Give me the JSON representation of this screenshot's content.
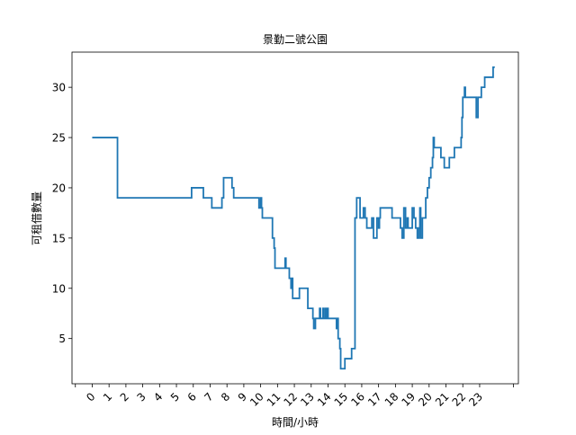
{
  "chart_data": {
    "type": "line",
    "title": "景勤二號公園",
    "xlabel": "時間/小時",
    "ylabel": "可租借數量",
    "xlim": [
      -1.2,
      25.3
    ],
    "ylim": [
      0.5,
      33.5
    ],
    "x_ticks": [
      0,
      1,
      2,
      3,
      4,
      5,
      6,
      7,
      8,
      9,
      10,
      11,
      12,
      13,
      14,
      15,
      16,
      17,
      18,
      19,
      20,
      21,
      22,
      23
    ],
    "x_tick_labels": [
      "0",
      "1",
      "2",
      "3",
      "4",
      "5",
      "6",
      "7",
      "8",
      "9",
      "10",
      "11",
      "12",
      "13",
      "14",
      "15",
      "16",
      "17",
      "18",
      "19",
      "20",
      "21",
      "22",
      "23"
    ],
    "y_ticks": [
      5,
      10,
      15,
      20,
      25,
      30
    ],
    "y_tick_labels": [
      "5",
      "10",
      "15",
      "20",
      "25",
      "30"
    ],
    "color": "#1f77b4",
    "grid": false,
    "series": [
      {
        "name": "",
        "points": [
          [
            0,
            25
          ],
          [
            1.5,
            25
          ],
          [
            1.5,
            19
          ],
          [
            5.9,
            19
          ],
          [
            5.9,
            20
          ],
          [
            6.6,
            20
          ],
          [
            6.6,
            19
          ],
          [
            7.1,
            19
          ],
          [
            7.1,
            18
          ],
          [
            7.7,
            18
          ],
          [
            7.7,
            19
          ],
          [
            7.8,
            19
          ],
          [
            7.8,
            21
          ],
          [
            8.3,
            21
          ],
          [
            8.3,
            20
          ],
          [
            8.4,
            20
          ],
          [
            8.4,
            19
          ],
          [
            9.9,
            19
          ],
          [
            9.9,
            18
          ],
          [
            10.0,
            18
          ],
          [
            10.0,
            19
          ],
          [
            10.05,
            19
          ],
          [
            10.05,
            18
          ],
          [
            10.1,
            18
          ],
          [
            10.1,
            17
          ],
          [
            10.7,
            17
          ],
          [
            10.7,
            15
          ],
          [
            10.8,
            15
          ],
          [
            10.8,
            14
          ],
          [
            10.85,
            14
          ],
          [
            10.85,
            12
          ],
          [
            11.45,
            12
          ],
          [
            11.45,
            13
          ],
          [
            11.5,
            13
          ],
          [
            11.5,
            12
          ],
          [
            11.7,
            12
          ],
          [
            11.7,
            11
          ],
          [
            11.8,
            11
          ],
          [
            11.8,
            10
          ],
          [
            11.85,
            10
          ],
          [
            11.85,
            11
          ],
          [
            11.9,
            11
          ],
          [
            11.9,
            9
          ],
          [
            12.3,
            9
          ],
          [
            12.3,
            10
          ],
          [
            12.8,
            10
          ],
          [
            12.8,
            8
          ],
          [
            13.1,
            8
          ],
          [
            13.1,
            7
          ],
          [
            13.15,
            7
          ],
          [
            13.15,
            6
          ],
          [
            13.25,
            6
          ],
          [
            13.25,
            7
          ],
          [
            13.5,
            7
          ],
          [
            13.5,
            8
          ],
          [
            13.55,
            8
          ],
          [
            13.55,
            7
          ],
          [
            13.7,
            7
          ],
          [
            13.7,
            8
          ],
          [
            13.75,
            8
          ],
          [
            13.75,
            7
          ],
          [
            13.85,
            7
          ],
          [
            13.85,
            8
          ],
          [
            13.9,
            8
          ],
          [
            13.9,
            7
          ],
          [
            13.95,
            7
          ],
          [
            13.95,
            8
          ],
          [
            14.0,
            8
          ],
          [
            14.0,
            7
          ],
          [
            14.5,
            7
          ],
          [
            14.5,
            6
          ],
          [
            14.55,
            6
          ],
          [
            14.55,
            7
          ],
          [
            14.6,
            7
          ],
          [
            14.6,
            5
          ],
          [
            14.7,
            5
          ],
          [
            14.7,
            4
          ],
          [
            14.75,
            4
          ],
          [
            14.75,
            2
          ],
          [
            15.0,
            2
          ],
          [
            15.0,
            3
          ],
          [
            15.4,
            3
          ],
          [
            15.4,
            4
          ],
          [
            15.6,
            4
          ],
          [
            15.6,
            17
          ],
          [
            15.7,
            17
          ],
          [
            15.7,
            19
          ],
          [
            15.9,
            19
          ],
          [
            15.9,
            17
          ],
          [
            16.1,
            17
          ],
          [
            16.1,
            18
          ],
          [
            16.2,
            18
          ],
          [
            16.2,
            17
          ],
          [
            16.3,
            17
          ],
          [
            16.3,
            16
          ],
          [
            16.6,
            16
          ],
          [
            16.6,
            17
          ],
          [
            16.7,
            17
          ],
          [
            16.7,
            15
          ],
          [
            16.9,
            15
          ],
          [
            16.9,
            17
          ],
          [
            17.0,
            17
          ],
          [
            17.0,
            16
          ],
          [
            17.05,
            16
          ],
          [
            17.05,
            17
          ],
          [
            17.1,
            17
          ],
          [
            17.1,
            18
          ],
          [
            17.8,
            18
          ],
          [
            17.8,
            17
          ],
          [
            18.3,
            17
          ],
          [
            18.3,
            16
          ],
          [
            18.4,
            16
          ],
          [
            18.4,
            15
          ],
          [
            18.5,
            15
          ],
          [
            18.5,
            18
          ],
          [
            18.6,
            18
          ],
          [
            18.6,
            16
          ],
          [
            18.7,
            16
          ],
          [
            18.7,
            17
          ],
          [
            18.75,
            17
          ],
          [
            18.75,
            16
          ],
          [
            19.0,
            16
          ],
          [
            19.0,
            18
          ],
          [
            19.1,
            18
          ],
          [
            19.1,
            17
          ],
          [
            19.2,
            17
          ],
          [
            19.2,
            16
          ],
          [
            19.3,
            16
          ],
          [
            19.3,
            15
          ],
          [
            19.4,
            15
          ],
          [
            19.4,
            16
          ],
          [
            19.45,
            16
          ],
          [
            19.45,
            18
          ],
          [
            19.5,
            18
          ],
          [
            19.5,
            15
          ],
          [
            19.6,
            15
          ],
          [
            19.6,
            17
          ],
          [
            19.8,
            17
          ],
          [
            19.8,
            19
          ],
          [
            19.9,
            19
          ],
          [
            19.9,
            20
          ],
          [
            20.0,
            20
          ],
          [
            20.0,
            21
          ],
          [
            20.1,
            21
          ],
          [
            20.1,
            22
          ],
          [
            20.2,
            22
          ],
          [
            20.2,
            23
          ],
          [
            20.25,
            23
          ],
          [
            20.25,
            25
          ],
          [
            20.3,
            25
          ],
          [
            20.3,
            24
          ],
          [
            20.7,
            24
          ],
          [
            20.7,
            23
          ],
          [
            20.9,
            23
          ],
          [
            20.9,
            22
          ],
          [
            21.2,
            22
          ],
          [
            21.2,
            23
          ],
          [
            21.5,
            23
          ],
          [
            21.5,
            24
          ],
          [
            21.9,
            24
          ],
          [
            21.9,
            25
          ],
          [
            21.95,
            25
          ],
          [
            21.95,
            27
          ],
          [
            22.0,
            27
          ],
          [
            22.0,
            29
          ],
          [
            22.1,
            29
          ],
          [
            22.1,
            30
          ],
          [
            22.15,
            30
          ],
          [
            22.15,
            29
          ],
          [
            22.8,
            29
          ],
          [
            22.8,
            27
          ],
          [
            22.9,
            27
          ],
          [
            22.9,
            29
          ],
          [
            23.1,
            29
          ],
          [
            23.1,
            30
          ],
          [
            23.3,
            30
          ],
          [
            23.3,
            31
          ],
          [
            23.8,
            31
          ],
          [
            23.8,
            32
          ],
          [
            23.9,
            32
          ]
        ]
      }
    ]
  }
}
